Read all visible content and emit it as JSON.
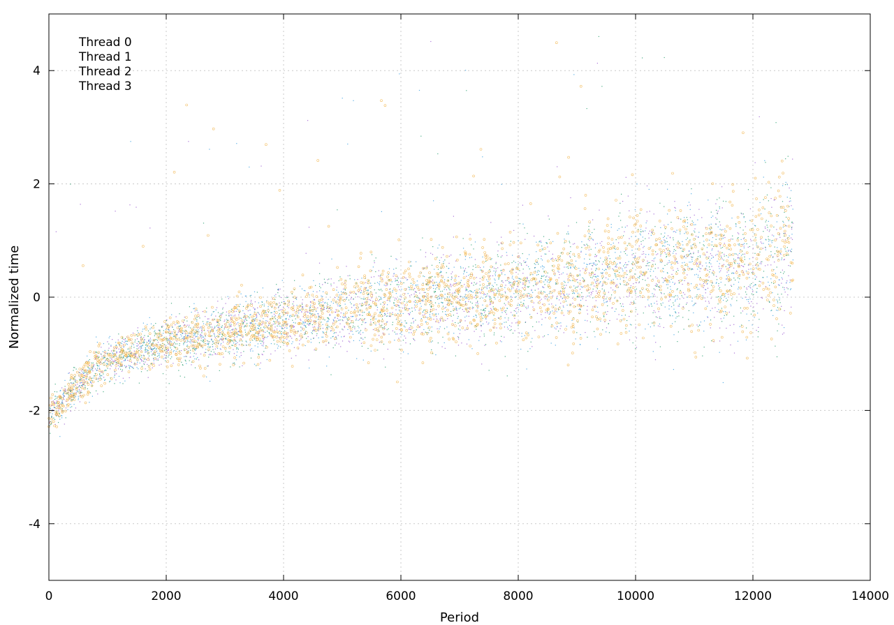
{
  "chart_data": {
    "type": "scatter",
    "title": "",
    "xlabel": "Period",
    "ylabel": "Normalized time",
    "xlim": [
      0,
      14000
    ],
    "ylim": [
      -5,
      5
    ],
    "xticks": [
      0,
      2000,
      4000,
      6000,
      8000,
      10000,
      12000,
      14000
    ],
    "yticks": [
      -4,
      -2,
      0,
      2,
      4
    ],
    "x_tick_labels": [
      "0",
      "2000",
      "4000",
      "6000",
      "8000",
      "10000",
      "12000",
      "14000"
    ],
    "y_tick_labels": [
      "-4",
      "-2",
      "0",
      "2",
      "4"
    ],
    "grid": true,
    "legend_position": "top-left",
    "x_range_of_points": [
      0,
      12680
    ],
    "series": [
      {
        "name": "Thread 0",
        "color": "#9b59d0",
        "marker": "dot"
      },
      {
        "name": "Thread 1",
        "color": "#2aa070",
        "marker": "dot"
      },
      {
        "name": "Thread 2",
        "color": "#3aa0e0",
        "marker": "dot"
      },
      {
        "name": "Thread 3",
        "color": "#f0b040",
        "marker": "circle"
      }
    ],
    "trend": [
      {
        "x": 0,
        "y": -2.1
      },
      {
        "x": 500,
        "y": -1.5
      },
      {
        "x": 1000,
        "y": -1.1
      },
      {
        "x": 2000,
        "y": -0.8
      },
      {
        "x": 3000,
        "y": -0.6
      },
      {
        "x": 4000,
        "y": -0.4
      },
      {
        "x": 5000,
        "y": -0.25
      },
      {
        "x": 6000,
        "y": -0.1
      },
      {
        "x": 7000,
        "y": 0.05
      },
      {
        "x": 8000,
        "y": 0.15
      },
      {
        "x": 9000,
        "y": 0.3
      },
      {
        "x": 10000,
        "y": 0.45
      },
      {
        "x": 11000,
        "y": 0.55
      },
      {
        "x": 12000,
        "y": 0.6
      },
      {
        "x": 12680,
        "y": 0.9
      }
    ]
  }
}
